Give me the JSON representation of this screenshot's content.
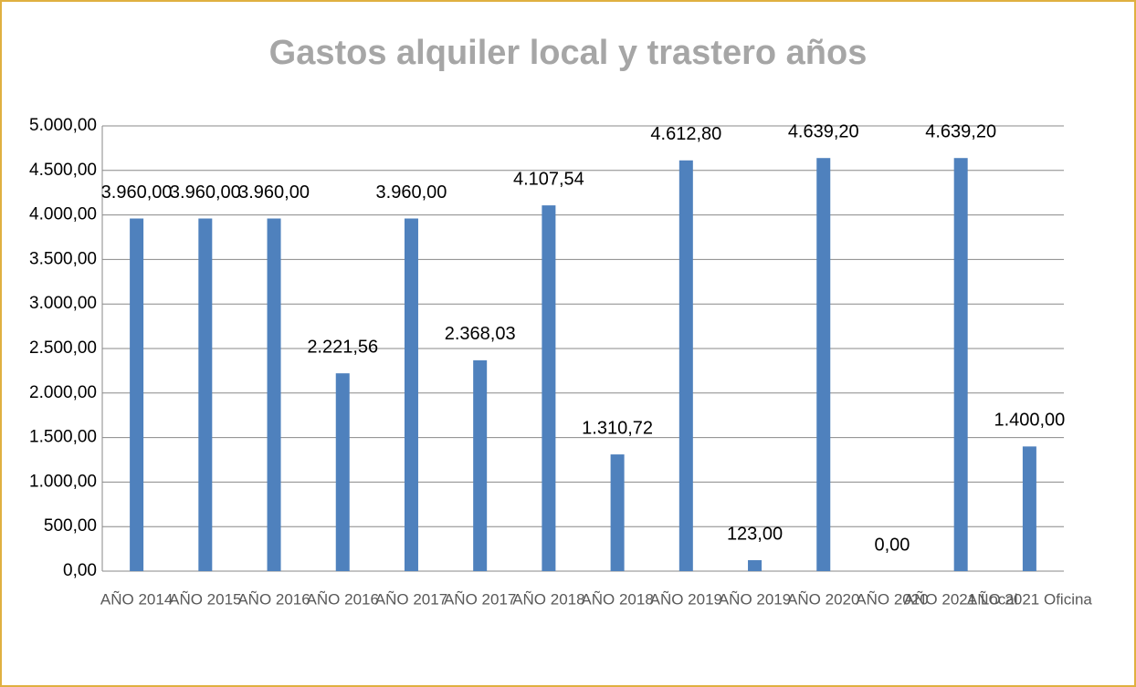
{
  "chart_data": {
    "type": "bar",
    "title": "Gastos alquiler local y trastero años",
    "categories": [
      "AÑO 2014",
      "AÑO 2015",
      "AÑO 2016",
      "AÑO 2016",
      "AÑO 2017",
      "AÑO 2017",
      "AÑO 2018",
      "AÑO 2018",
      "AÑO 2019",
      "AÑO 2019",
      "AÑO 2020",
      "AÑO 2020",
      "AÑO 2021 Local",
      "AÑO 2021 Oficina"
    ],
    "values": [
      3960,
      3960,
      3960,
      2221.56,
      3960,
      2368.03,
      4107.54,
      1310.72,
      4612.8,
      123,
      4639.2,
      0,
      4639.2,
      1400
    ],
    "value_labels": [
      "3.960,00",
      "3.960,00",
      "3.960,00",
      "2.221,56",
      "3.960,00",
      "2.368,03",
      "4.107,54",
      "1.310,72",
      "4.612,80",
      "123,00",
      "4.639,20",
      "0,00",
      "4.639,20",
      "1.400,00"
    ],
    "color": "#4f81bd",
    "ylim": [
      0,
      5000
    ],
    "yticks": [
      {
        "value": 0,
        "label": "0,00"
      },
      {
        "value": 500,
        "label": "500,00"
      },
      {
        "value": 1000,
        "label": "1.000,00"
      },
      {
        "value": 1500,
        "label": "1.500,00"
      },
      {
        "value": 2000,
        "label": "2.000,00"
      },
      {
        "value": 2500,
        "label": "2.500,00"
      },
      {
        "value": 3000,
        "label": "3.000,00"
      },
      {
        "value": 3500,
        "label": "3.500,00"
      },
      {
        "value": 4000,
        "label": "4.000,00"
      },
      {
        "value": 4500,
        "label": "4.500,00"
      },
      {
        "value": 5000,
        "label": "5.000,00"
      }
    ],
    "grid": true
  }
}
